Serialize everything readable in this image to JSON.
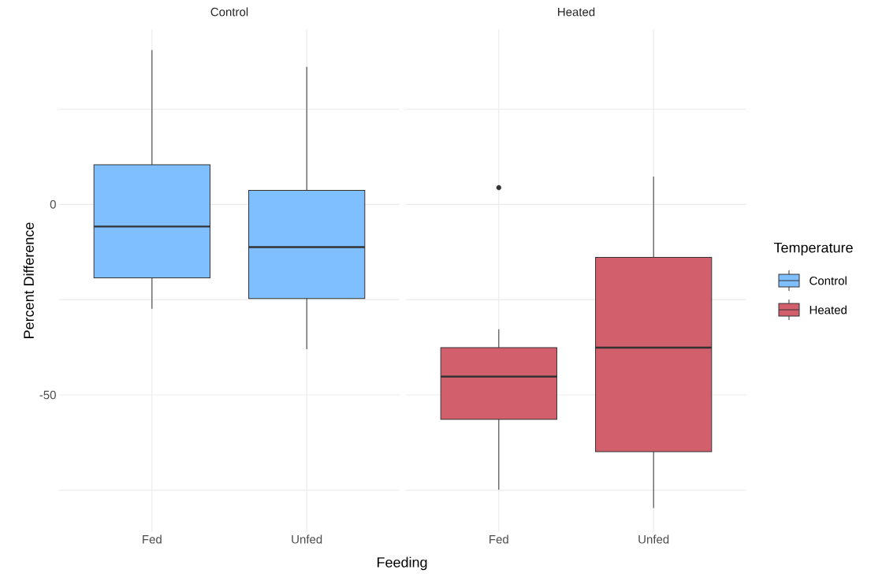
{
  "chart_data": [
    {
      "type": "box",
      "title": "Control",
      "xlabel": "Feeding",
      "ylabel": "Percent Difference",
      "categories": [
        "Fed",
        "Unfed"
      ],
      "series": [
        {
          "name": "Control",
          "color": "#7fbfff",
          "boxes": [
            {
              "low": -27.4,
              "q1": -19.3,
              "median": -5.8,
              "q3": 10.4,
              "high": 40.5
            },
            {
              "low": -38.0,
              "q1": -24.7,
              "median": -11.2,
              "q3": 3.7,
              "high": 36.1
            }
          ]
        }
      ],
      "ylim": [
        -86,
        46
      ],
      "yticks": [
        {
          "value": -75,
          "label": null
        },
        -50,
        {
          "value": -25,
          "label": null
        },
        0,
        {
          "value": 25,
          "label": null
        }
      ],
      "grid": true
    },
    {
      "type": "box",
      "title": "Heated",
      "categories": [
        "Fed",
        "Unfed"
      ],
      "series": [
        {
          "name": "Heated",
          "color": "#d2606c",
          "boxes": [
            {
              "low": -74.9,
              "q1": -56.4,
              "median": -45.2,
              "q3": -37.6,
              "high": -32.8,
              "outliers": [
                4.4
              ]
            },
            {
              "low": -79.7,
              "q1": -64.9,
              "median": -37.6,
              "q3": -13.9,
              "high": 7.3
            }
          ]
        }
      ],
      "ylim": [
        -86,
        46
      ],
      "yticks": [
        {
          "value": -75,
          "label": null
        },
        -50,
        {
          "value": -25,
          "label": null
        },
        0,
        {
          "value": 25,
          "label": null
        }
      ],
      "grid": true,
      "tick_labels": "x",
      "legend": "right",
      "legend_title": "Temperature"
    }
  ]
}
